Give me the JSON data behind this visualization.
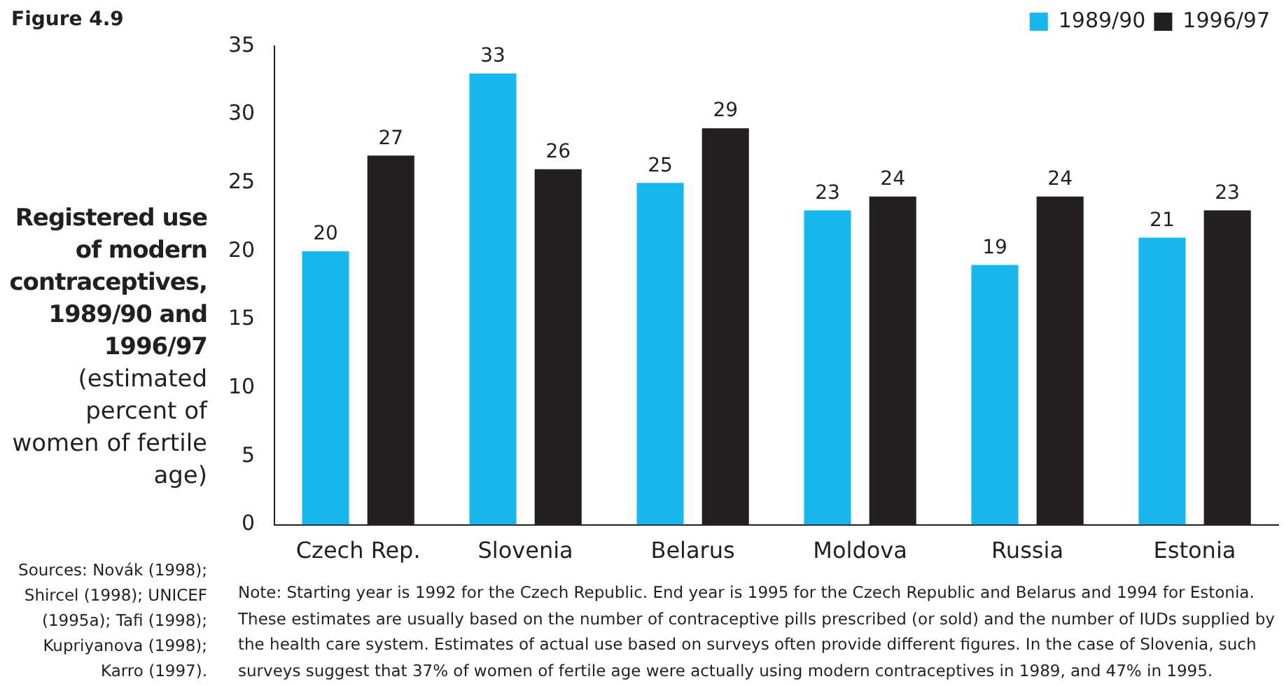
{
  "chart_data": {
    "type": "bar",
    "title": "Registered use of modern contraceptives, 1989/90 and 1996/97",
    "subtitle": "(estimated percent of women of fertile age)",
    "categories": [
      "Czech Rep.",
      "Slovenia",
      "Belarus",
      "Moldova",
      "Russia",
      "Estonia"
    ],
    "series": [
      {
        "name": "1989/90",
        "color": "#1ab7ee",
        "values": [
          20,
          33,
          25,
          23,
          19,
          21
        ]
      },
      {
        "name": "1996/97",
        "color": "#231f20",
        "values": [
          27,
          26,
          29,
          24,
          24,
          23
        ]
      }
    ],
    "ylim": [
      0,
      35
    ],
    "yticks": [
      0,
      5,
      10,
      15,
      20,
      25,
      30,
      35
    ],
    "grid": false,
    "legend": "top right",
    "data_labels": true,
    "annotations": [
      "Figure 4.9",
      "Sources: Novák (1998); Shircel (1998); UNICEF (1995a); Tafi (1998); Kupriyanova (1998); Karro (1997).",
      "Note: Starting year is 1992 for the Czech Republic. End year is 1995 for the Czech Republic and Belarus and 1994 for Estonia. These estimates are usually based on the number of contraceptive pills prescribed (or sold) and the number of IUDs supplied by the health care system. Estimates of actual use based on surveys often provide different figures. In the case of Slovenia, such surveys suggest that 37% of women of fertile age were actually using modern contraceptives in 1989, and 47% in 1995."
    ]
  }
}
